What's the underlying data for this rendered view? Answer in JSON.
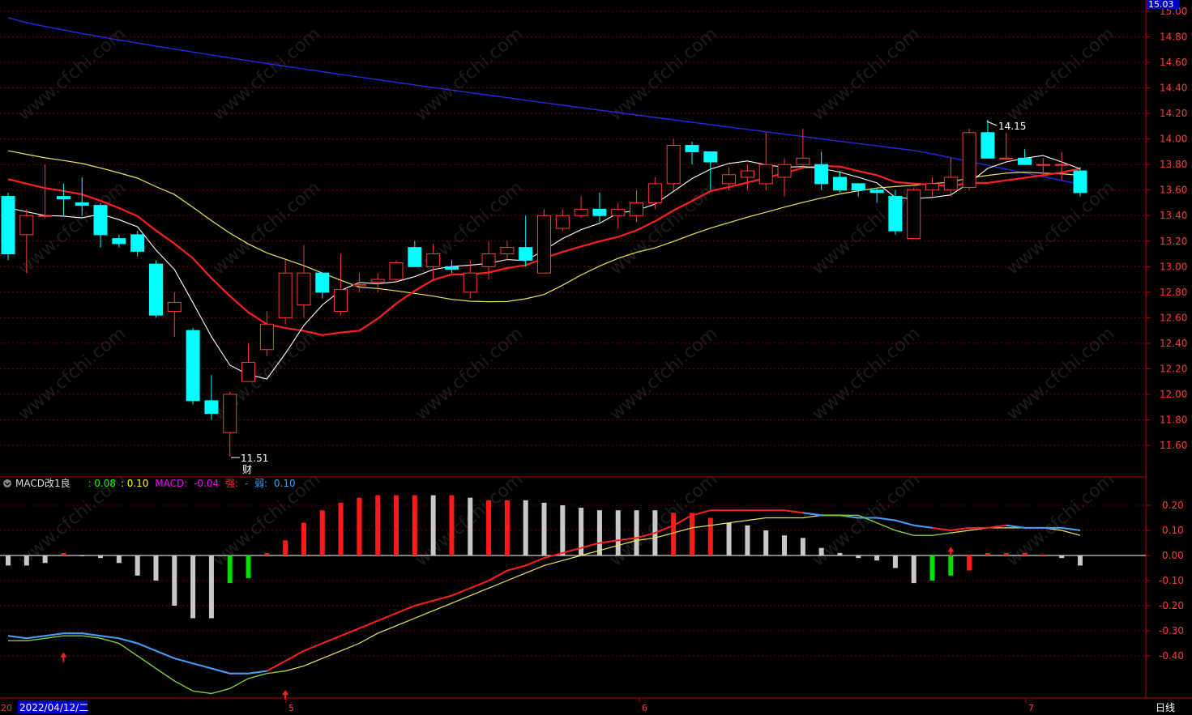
{
  "price_panel": {
    "last_price_tag": "15.03",
    "high_annotation": "14.15",
    "low_annotation": "11.51",
    "low_marker": "财",
    "y_ticks": [
      "15.00",
      "14.80",
      "14.60",
      "14.40",
      "14.20",
      "14.00",
      "13.80",
      "13.60",
      "13.40",
      "13.20",
      "13.00",
      "12.80",
      "12.60",
      "12.40",
      "12.20",
      "12.00",
      "11.80",
      "11.60"
    ]
  },
  "macd_panel": {
    "indicator_name": "MACD改1良",
    "dif_value": ": 0.08",
    "dea_value": ": 0.10",
    "macd_label": "MACD:",
    "macd_value": "-0.04",
    "strong_label": "强:",
    "strong_value": "-",
    "weak_label": "弱:",
    "weak_value": "0.10",
    "y_ticks": [
      "0.20",
      "0.10",
      "0.00",
      "-0.10",
      "-0.20",
      "-0.30",
      "-0.40"
    ]
  },
  "time_axis": {
    "start_marker": "20",
    "cursor_date": "2022/04/12/二",
    "month_labels": [
      "5",
      "6",
      "7"
    ],
    "period_label": "日线"
  },
  "colors": {
    "up": "#ff3b3b",
    "down": "#00ffff",
    "ma5": "#ffffff",
    "ma10": "#ff2020",
    "ma20": "#e8e85a",
    "ma60": "#3030ff",
    "macd_pos": "#ff1a1a",
    "macd_neg": "#00e000",
    "macd_fade": "#c8c8c8",
    "dif": "#ff2020",
    "dea": "#e8e85a"
  },
  "chart_data": {
    "type": "candlestick",
    "ylim": [
      11.4,
      15.0
    ],
    "candles": [
      [
        13.55,
        13.1,
        13.58,
        13.05
      ],
      [
        13.25,
        13.4,
        13.45,
        12.95
      ],
      [
        13.4,
        13.4,
        13.8,
        13.38
      ],
      [
        13.55,
        13.53,
        13.65,
        13.4
      ],
      [
        13.5,
        13.48,
        13.7,
        13.4
      ],
      [
        13.48,
        13.25,
        13.5,
        13.15
      ],
      [
        13.22,
        13.18,
        13.25,
        13.15
      ],
      [
        13.25,
        13.12,
        13.28,
        13.08
      ],
      [
        13.02,
        12.62,
        13.05,
        12.6
      ],
      [
        12.65,
        12.72,
        12.8,
        12.45
      ],
      [
        12.5,
        11.95,
        12.52,
        11.92
      ],
      [
        11.95,
        11.85,
        12.15,
        11.8
      ],
      [
        11.7,
        12.0,
        12.02,
        11.51
      ],
      [
        12.1,
        12.25,
        12.4,
        12.1
      ],
      [
        12.35,
        12.55,
        12.65,
        12.3
      ],
      [
        12.6,
        12.95,
        13.05,
        12.55
      ],
      [
        12.7,
        12.95,
        13.17,
        12.6
      ],
      [
        12.95,
        12.8,
        12.95,
        12.75
      ],
      [
        12.65,
        12.82,
        13.1,
        12.62
      ],
      [
        12.85,
        12.86,
        12.95,
        12.8
      ],
      [
        12.88,
        12.9,
        12.95,
        12.8
      ],
      [
        12.9,
        13.03,
        13.05,
        12.88
      ],
      [
        13.15,
        13.0,
        13.2,
        13.0
      ],
      [
        13.0,
        13.1,
        13.18,
        12.9
      ],
      [
        13.0,
        12.98,
        13.05,
        12.95
      ],
      [
        12.8,
        12.95,
        13.05,
        12.75
      ],
      [
        13.0,
        13.1,
        13.2,
        12.9
      ],
      [
        13.1,
        13.15,
        13.2,
        13.05
      ],
      [
        13.15,
        13.05,
        13.4,
        13.0
      ],
      [
        12.95,
        13.4,
        13.45,
        12.95
      ],
      [
        13.3,
        13.4,
        13.45,
        13.28
      ],
      [
        13.4,
        13.45,
        13.55,
        13.38
      ],
      [
        13.45,
        13.4,
        13.58,
        13.35
      ],
      [
        13.4,
        13.45,
        13.5,
        13.3
      ],
      [
        13.4,
        13.5,
        13.6,
        13.35
      ],
      [
        13.5,
        13.65,
        13.7,
        13.45
      ],
      [
        13.65,
        13.95,
        14.0,
        13.6
      ],
      [
        13.95,
        13.9,
        13.98,
        13.8
      ],
      [
        13.9,
        13.82,
        13.88,
        13.6
      ],
      [
        13.65,
        13.72,
        13.78,
        13.6
      ],
      [
        13.7,
        13.75,
        13.8,
        13.6
      ],
      [
        13.65,
        13.8,
        14.05,
        13.6
      ],
      [
        13.7,
        13.8,
        13.85,
        13.55
      ],
      [
        13.8,
        13.85,
        14.08,
        13.78
      ],
      [
        13.8,
        13.65,
        13.9,
        13.6
      ],
      [
        13.7,
        13.6,
        13.75,
        13.58
      ],
      [
        13.65,
        13.6,
        13.65,
        13.55
      ],
      [
        13.6,
        13.58,
        13.62,
        13.5
      ],
      [
        13.55,
        13.28,
        13.6,
        13.25
      ],
      [
        13.22,
        13.6,
        13.62,
        13.22
      ],
      [
        13.6,
        13.65,
        13.7,
        13.55
      ],
      [
        13.6,
        13.7,
        13.85,
        13.55
      ],
      [
        13.62,
        14.05,
        14.08,
        13.6
      ],
      [
        14.05,
        13.85,
        14.15,
        13.85
      ],
      [
        13.85,
        13.85,
        14.05,
        13.85
      ],
      [
        13.85,
        13.8,
        13.92,
        13.8
      ],
      [
        13.8,
        13.8,
        13.85,
        13.72
      ],
      [
        13.8,
        13.8,
        13.9,
        13.68
      ],
      [
        13.75,
        13.58,
        13.78,
        13.55
      ]
    ],
    "macd_hist": [
      -0.04,
      -0.04,
      -0.03,
      0.01,
      0.0,
      -0.01,
      -0.03,
      -0.08,
      -0.1,
      -0.2,
      -0.25,
      -0.25,
      -0.11,
      -0.09,
      0.01,
      0.06,
      0.13,
      0.18,
      0.21,
      0.23,
      0.24,
      0.24,
      0.24,
      0.24,
      0.24,
      0.23,
      0.22,
      0.22,
      0.22,
      0.21,
      0.2,
      0.19,
      0.18,
      0.18,
      0.18,
      0.18,
      0.17,
      0.17,
      0.15,
      0.13,
      0.12,
      0.1,
      0.08,
      0.07,
      0.03,
      0.01,
      -0.01,
      -0.02,
      -0.05,
      -0.11,
      -0.1,
      -0.08,
      -0.06,
      0.01,
      0.01,
      0.01,
      0.0,
      -0.01,
      -0.04
    ],
    "macd_hist_state": [
      "fade",
      "fade",
      "fade",
      "pos",
      "fade",
      "fade",
      "fade",
      "fade",
      "fade",
      "fade",
      "fade",
      "fade",
      "neg",
      "neg",
      "pos",
      "pos",
      "pos",
      "pos",
      "pos",
      "pos",
      "pos",
      "pos",
      "pos",
      "fade",
      "pos",
      "fade",
      "pos",
      "pos",
      "fade",
      "fade",
      "fade",
      "fade",
      "fade",
      "fade",
      "fade",
      "fade",
      "pos",
      "pos",
      "pos",
      "fade",
      "fade",
      "fade",
      "fade",
      "fade",
      "fade",
      "fade",
      "fade",
      "fade",
      "fade",
      "fade",
      "neg",
      "neg",
      "pos",
      "pos",
      "pos",
      "pos",
      "pos",
      "fade",
      "fade"
    ]
  }
}
